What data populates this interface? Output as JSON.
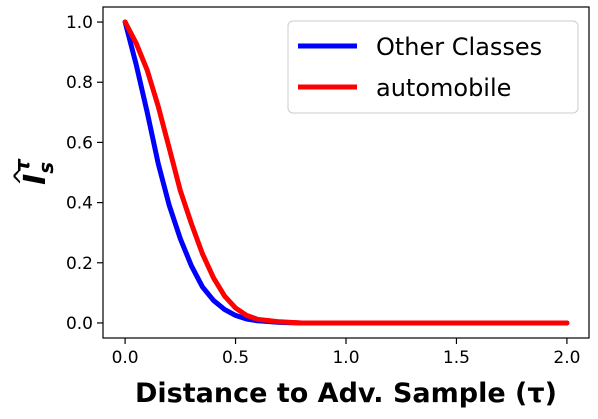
{
  "chart_data": {
    "type": "line",
    "xlabel": "Distance to Adv. Sample (τ)",
    "ylabel": "Î_s^τ",
    "ylabel_parts": {
      "base": "I",
      "hat": "^",
      "sub": "s",
      "sup": "τ"
    },
    "xlim": [
      -0.1,
      2.1
    ],
    "ylim": [
      -0.05,
      1.05
    ],
    "xticks": [
      0.0,
      0.5,
      1.0,
      1.5,
      2.0
    ],
    "xtick_labels": [
      "0.0",
      "0.5",
      "1.0",
      "1.5",
      "2.0"
    ],
    "yticks": [
      0.0,
      0.2,
      0.4,
      0.6,
      0.8,
      1.0
    ],
    "ytick_labels": [
      "0.0",
      "0.2",
      "0.4",
      "0.6",
      "0.8",
      "1.0"
    ],
    "grid": false,
    "legend_position": "top-right",
    "series": [
      {
        "name": "Other Classes",
        "color": "#0000ff",
        "x": [
          0.0,
          0.05,
          0.1,
          0.15,
          0.2,
          0.25,
          0.3,
          0.35,
          0.4,
          0.45,
          0.5,
          0.55,
          0.6,
          0.7,
          0.8,
          1.0,
          1.5,
          2.0
        ],
        "y": [
          1.0,
          0.86,
          0.7,
          0.53,
          0.39,
          0.28,
          0.19,
          0.12,
          0.075,
          0.045,
          0.025,
          0.013,
          0.007,
          0.002,
          0.0,
          0.0,
          0.0,
          0.0
        ]
      },
      {
        "name": "automobile",
        "color": "#ff0000",
        "x": [
          0.0,
          0.05,
          0.1,
          0.15,
          0.2,
          0.25,
          0.3,
          0.35,
          0.4,
          0.45,
          0.5,
          0.55,
          0.6,
          0.7,
          0.8,
          1.0,
          1.5,
          2.0
        ],
        "y": [
          1.0,
          0.93,
          0.84,
          0.72,
          0.58,
          0.44,
          0.33,
          0.23,
          0.15,
          0.09,
          0.05,
          0.025,
          0.012,
          0.004,
          0.0,
          0.0,
          0.0,
          0.0
        ]
      }
    ]
  }
}
